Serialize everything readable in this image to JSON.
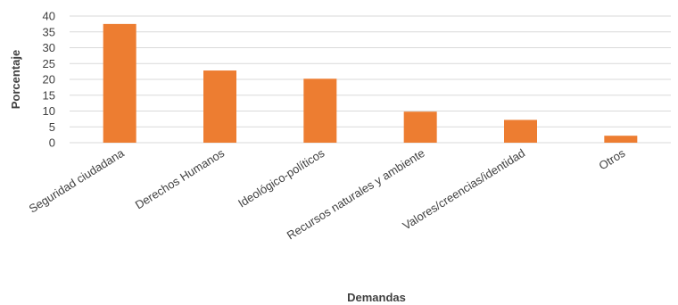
{
  "chart_data": {
    "type": "bar",
    "categories": [
      "Seguridad ciudadana",
      "Derechos Humanos",
      "Ideológico-políticos",
      "Recursos naturales y ambiente",
      "Valores/creencias/identidad",
      "Otros"
    ],
    "values": [
      37.5,
      22.8,
      20.2,
      9.8,
      7.2,
      2.2
    ],
    "yticks": [
      "0",
      "5",
      "10",
      "15",
      "20",
      "25",
      "30",
      "35",
      "40"
    ],
    "xlabel": "Demandas",
    "ylabel": "Porcentaje",
    "ylim": [
      0,
      40
    ],
    "bar_color": "#ED7D31",
    "grid": true,
    "legend": "none"
  }
}
